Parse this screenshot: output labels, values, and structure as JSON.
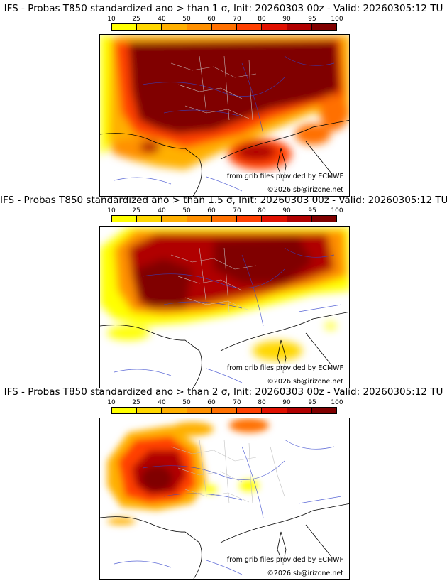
{
  "scale": {
    "labels": [
      "10",
      "25",
      "40",
      "50",
      "60",
      "70",
      "80",
      "90",
      "95",
      "100"
    ],
    "colors": [
      "#ffff00",
      "#ffd700",
      "#ffb000",
      "#ff9000",
      "#ff7000",
      "#ff4000",
      "#e01000",
      "#b00000",
      "#800000"
    ]
  },
  "panels": [
    {
      "title": "IFS - Probas T850  standardized ano > than 1 σ, Init: 20260303 00z - Valid: 20260305:12 TU",
      "threshold_sigma": 1,
      "credit_data": "from grib files provided by ECMWF",
      "credit_copyright": "©2026 sb@irizone.net"
    },
    {
      "title": "IFS - Probas T850  standardized ano > than 1.5 σ, Init: 20260303 00z - Valid: 20260305:12 TU",
      "threshold_sigma": 1.5,
      "credit_data": "from grib files provided by ECMWF",
      "credit_copyright": "©2026 sb@irizone.net"
    },
    {
      "title": "IFS - Probas T850  standardized ano > than 2 σ, Init: 20260303 00z - Valid: 20260305:12 TU",
      "threshold_sigma": 2,
      "credit_data": "from grib files provided by ECMWF",
      "credit_copyright": "©2026 sb@irizone.net"
    }
  ]
}
